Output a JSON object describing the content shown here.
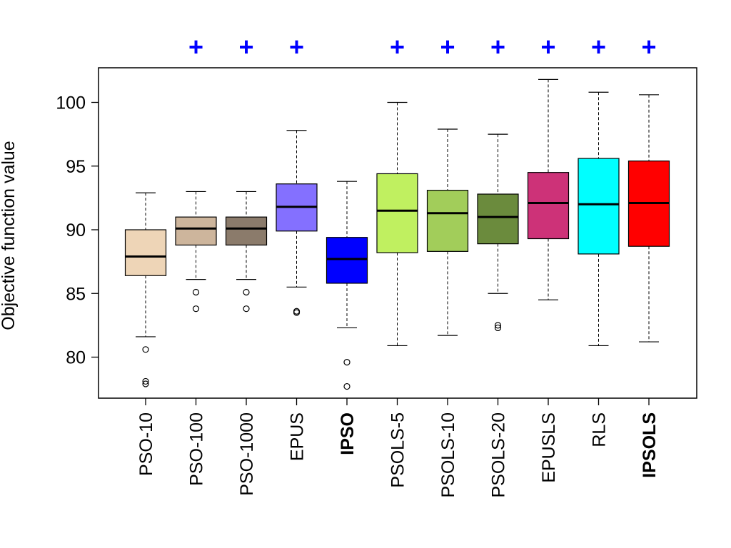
{
  "chart_data": {
    "type": "boxplot",
    "title": "",
    "xlabel": "",
    "ylabel": "Objective function value",
    "ylim": [
      77.2,
      102.6
    ],
    "y_ticks": [
      80,
      85,
      90,
      95,
      100
    ],
    "y_tick_labels": [
      "80",
      "85",
      "90",
      "95",
      "100"
    ],
    "bold_categories": [
      "IPSO",
      "IPSOLS"
    ],
    "significance_marker": "+",
    "significance_color": "#0000ff",
    "series": [
      {
        "name": "PSO-10",
        "color": "#eed5b7",
        "whisker_low": 81.6,
        "q1": 86.4,
        "median": 87.9,
        "q3": 90.0,
        "whisker_high": 92.9,
        "outliers": [
          80.6,
          78.1,
          77.9
        ],
        "significant": false
      },
      {
        "name": "PSO-100",
        "color": "#cdb59c",
        "whisker_low": 86.1,
        "q1": 88.8,
        "median": 90.1,
        "q3": 91.0,
        "whisker_high": 93.0,
        "outliers": [
          85.1,
          83.8
        ],
        "significant": true
      },
      {
        "name": "PSO-1000",
        "color": "#8b7b6b",
        "whisker_low": 86.1,
        "q1": 88.8,
        "median": 90.1,
        "q3": 91.0,
        "whisker_high": 93.0,
        "outliers": [
          85.1,
          83.8
        ],
        "significant": true
      },
      {
        "name": "EPUS",
        "color": "#8470ff",
        "whisker_low": 85.5,
        "q1": 89.9,
        "median": 91.8,
        "q3": 93.6,
        "whisker_high": 97.8,
        "outliers": [
          83.6,
          83.5
        ],
        "significant": true
      },
      {
        "name": "IPSO",
        "color": "#0000ff",
        "whisker_low": 82.3,
        "q1": 85.8,
        "median": 87.7,
        "q3": 89.4,
        "whisker_high": 93.8,
        "outliers": [
          79.6,
          77.7
        ],
        "significant": false
      },
      {
        "name": "PSOLS-5",
        "color": "#c0f060",
        "whisker_low": 80.9,
        "q1": 88.2,
        "median": 91.5,
        "q3": 94.4,
        "whisker_high": 100.0,
        "outliers": [],
        "significant": true
      },
      {
        "name": "PSOLS-10",
        "color": "#a2cd5a",
        "whisker_low": 81.7,
        "q1": 88.3,
        "median": 91.3,
        "q3": 93.1,
        "whisker_high": 97.9,
        "outliers": [],
        "significant": true
      },
      {
        "name": "PSOLS-20",
        "color": "#6b8b3d",
        "whisker_low": 85.0,
        "q1": 88.9,
        "median": 91.0,
        "q3": 92.8,
        "whisker_high": 97.5,
        "outliers": [
          82.5,
          82.3
        ],
        "significant": true
      },
      {
        "name": "EPUSLS",
        "color": "#cd3278",
        "whisker_low": 84.5,
        "q1": 89.3,
        "median": 92.1,
        "q3": 94.5,
        "whisker_high": 101.8,
        "outliers": [],
        "significant": true
      },
      {
        "name": "RLS",
        "color": "#00ffff",
        "whisker_low": 80.9,
        "q1": 88.1,
        "median": 92.0,
        "q3": 95.6,
        "whisker_high": 100.8,
        "outliers": [],
        "significant": true
      },
      {
        "name": "IPSOLS",
        "color": "#ff0000",
        "whisker_low": 81.2,
        "q1": 88.7,
        "median": 92.1,
        "q3": 95.4,
        "whisker_high": 100.6,
        "outliers": [],
        "significant": true
      }
    ]
  }
}
